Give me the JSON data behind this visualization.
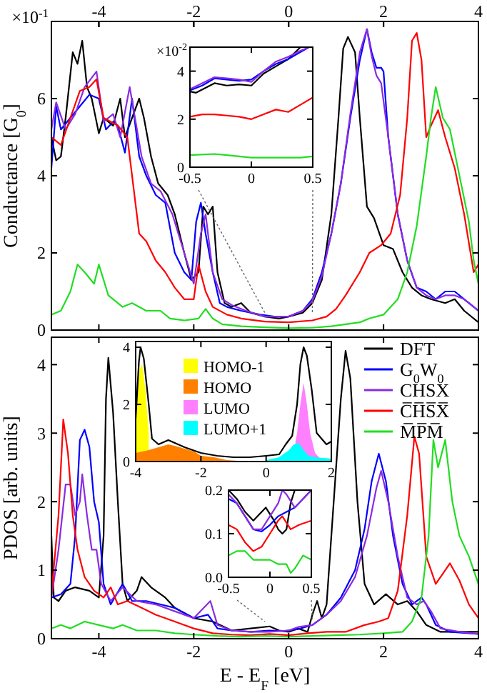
{
  "chart_data": [
    {
      "type": "line",
      "ylabel": "Conductance [G$_{0}$]",
      "annotations": [
        "×10$^{-1}$"
      ],
      "xlim": [
        -5,
        4
      ],
      "ylim": [
        0,
        8
      ],
      "xticks": [
        -4,
        -2,
        0,
        2,
        4
      ],
      "x2lim": [
        -5,
        4
      ],
      "x2ticks": [
        -4,
        -2,
        0,
        2,
        4
      ],
      "yticks": [
        0,
        2,
        4,
        6
      ],
      "tick_labels": "y",
      "series": [
        {
          "color": "#000000",
          "x": [
            -5,
            -4.9,
            -4.8,
            -4.7,
            -4.55,
            -4.45,
            -4.35,
            -4.25,
            -4.15,
            -4,
            -3.9,
            -3.7,
            -3.55,
            -3.45,
            -3.15,
            -3.05,
            -2.9,
            -2.75,
            -2.55,
            -2.4,
            -2.2,
            -2.05,
            -1.9,
            -1.8,
            -1.7,
            -1.6,
            -1.5,
            -1.35,
            -1.2,
            -1,
            -0.8,
            -0.5,
            -0.2,
            0,
            0.3,
            0.5,
            0.7,
            0.9,
            1.05,
            1.15,
            1.25,
            1.4,
            1.5,
            1.65,
            1.8,
            2,
            2.2,
            2.4,
            2.6,
            2.8,
            3,
            3.3,
            3.5,
            3.7,
            4
          ],
          "values": [
            5,
            4.4,
            4.5,
            5.5,
            7.2,
            6.9,
            7.5,
            6.3,
            6,
            5.1,
            5.5,
            5.3,
            6,
            5,
            6,
            5.5,
            4.5,
            3.8,
            3.5,
            3,
            2,
            1.3,
            1.5,
            3.2,
            3,
            3.2,
            1.5,
            0.7,
            0.6,
            0.7,
            0.45,
            0.35,
            0.3,
            0.35,
            0.45,
            0.7,
            1.3,
            3,
            5.5,
            7.3,
            7.6,
            7.2,
            5.5,
            3.2,
            2.9,
            2.2,
            2.1,
            1.5,
            1.1,
            0.9,
            0.8,
            0.7,
            0.8,
            0.5,
            0.2
          ]
        },
        {
          "color": "#0000ff",
          "x": [
            -5,
            -4.9,
            -4.8,
            -4.6,
            -4.4,
            -4.2,
            -4,
            -3.85,
            -3.7,
            -3.6,
            -3.45,
            -3.3,
            -3.15,
            -3,
            -2.8,
            -2.6,
            -2.4,
            -2.2,
            -2.05,
            -1.95,
            -1.85,
            -1.75,
            -1.6,
            -1.45,
            -1.3,
            -1,
            -0.6,
            -0.3,
            0,
            0.3,
            0.5,
            0.7,
            0.9,
            1.1,
            1.3,
            1.5,
            1.65,
            1.75,
            1.85,
            1.95,
            2,
            2.1,
            2.3,
            2.5,
            2.7,
            2.9,
            3.1,
            3.3,
            3.5,
            3.7,
            4
          ],
          "values": [
            4.2,
            5.8,
            5.2,
            5.5,
            5.8,
            6.1,
            6,
            5.2,
            5.4,
            5.3,
            4.6,
            6,
            4.5,
            4,
            3.5,
            3.3,
            2,
            1.5,
            1.3,
            2.8,
            3.3,
            2.5,
            1.5,
            0.7,
            0.6,
            0.5,
            0.4,
            0.35,
            0.35,
            0.5,
            0.8,
            1.5,
            2.5,
            3.8,
            5.5,
            7,
            7.8,
            7.2,
            6.8,
            6.8,
            6.7,
            5,
            3,
            1.8,
            1.1,
            1,
            0.8,
            1,
            1,
            0.8,
            0.5
          ]
        },
        {
          "color": "#8a2be2",
          "x": [
            -5,
            -4.9,
            -4.7,
            -4.5,
            -4.3,
            -4.05,
            -3.9,
            -3.7,
            -3.55,
            -3.35,
            -3.1,
            -2.9,
            -2.7,
            -2.45,
            -2.2,
            -2,
            -1.85,
            -1.75,
            -1.6,
            -1.4,
            -1.2,
            -0.9,
            -0.5,
            0,
            0.3,
            0.5,
            0.7,
            0.9,
            1.1,
            1.3,
            1.5,
            1.65,
            1.75,
            1.85,
            1.95,
            2.1,
            2.3,
            2.5,
            2.7,
            2.9,
            3.1,
            3.3,
            3.5,
            3.7,
            4
          ],
          "values": [
            5.2,
            5.9,
            5.2,
            5.6,
            6.3,
            6.7,
            5.4,
            5.6,
            5,
            6.3,
            4.5,
            3.8,
            3.6,
            3,
            2,
            1.2,
            2.5,
            3,
            1.5,
            0.8,
            0.65,
            0.5,
            0.35,
            0.35,
            0.5,
            0.75,
            1.4,
            2.5,
            3.8,
            5.6,
            7.2,
            7.8,
            7.1,
            6.6,
            6.4,
            5,
            3,
            1.8,
            1.1,
            0.9,
            0.8,
            0.9,
            0.9,
            0.8,
            0.5
          ]
        },
        {
          "color": "#ff0000",
          "x": [
            -5,
            -4.8,
            -4.6,
            -4.4,
            -4.2,
            -4.05,
            -3.9,
            -3.6,
            -3.4,
            -3.3,
            -3.15,
            -3,
            -2.8,
            -2.6,
            -2.4,
            -2.2,
            -2,
            -1.9,
            -1.75,
            -1.6,
            -1.3,
            -1,
            -0.5,
            0,
            0.5,
            0.8,
            1,
            1.2,
            1.5,
            1.7,
            1.95,
            2.15,
            2.35,
            2.5,
            2.6,
            2.7,
            2.8,
            2.9,
            3,
            3.15,
            3.3,
            3.5,
            3.7,
            3.9,
            4
          ],
          "values": [
            5,
            4.8,
            5.5,
            6.2,
            6.3,
            6.5,
            5.5,
            5.3,
            5,
            4,
            2.5,
            2.3,
            1.8,
            1.5,
            1.1,
            0.8,
            0.8,
            1.7,
            1,
            0.6,
            0.4,
            0.3,
            0.22,
            0.2,
            0.25,
            0.35,
            0.55,
            0.9,
            1.5,
            2,
            2.2,
            2.5,
            3.5,
            5.5,
            7.5,
            7.7,
            7,
            5,
            5.3,
            5.7,
            5,
            4.2,
            3,
            1.5,
            1.7
          ]
        },
        {
          "color": "#22dd22",
          "x": [
            -5,
            -4.8,
            -4.6,
            -4.45,
            -4.3,
            -4.1,
            -4,
            -3.8,
            -3.5,
            -3.3,
            -3,
            -2.7,
            -2.5,
            -2.2,
            -1.9,
            -1.75,
            -1.6,
            -1.4,
            -1,
            -0.5,
            0,
            0.5,
            0.9,
            1.2,
            1.5,
            1.7,
            2,
            2.3,
            2.5,
            2.7,
            2.9,
            3,
            3.1,
            3.25,
            3.4,
            3.6,
            3.8,
            3.9,
            4
          ],
          "values": [
            0.4,
            0.5,
            1,
            1.7,
            1.5,
            1.2,
            1.7,
            0.9,
            0.6,
            0.7,
            0.5,
            0.5,
            0.3,
            0.25,
            0.3,
            0.55,
            0.3,
            0.15,
            0.1,
            0.07,
            0.05,
            0.06,
            0.1,
            0.15,
            0.2,
            0.3,
            0.4,
            0.8,
            1.5,
            2.7,
            4.5,
            5.5,
            6.3,
            5.5,
            5.2,
            4,
            2.8,
            1.8,
            1.2
          ]
        }
      ]
    },
    {
      "type": "line",
      "annotations": [
        "×10$^{-2}$"
      ],
      "xlim": [
        -0.5,
        0.5
      ],
      "ylim": [
        0,
        5
      ],
      "xticks": [
        -0.5,
        0,
        0.5
      ],
      "yticks": [
        0,
        2,
        4
      ],
      "series": [
        {
          "color": "#000000",
          "x": [
            -0.5,
            -0.45,
            -0.3,
            -0.2,
            -0.1,
            0,
            0.1,
            0.2,
            0.3,
            0.4
          ],
          "values": [
            3.15,
            3.1,
            3.5,
            3.4,
            3.45,
            3.4,
            3.9,
            4.2,
            4.5,
            5
          ]
        },
        {
          "color": "#0000ff",
          "x": [
            -0.5,
            -0.4,
            -0.3,
            -0.2,
            -0.1,
            0,
            0.1,
            0.2,
            0.3,
            0.4,
            0.47
          ],
          "values": [
            3.2,
            3.4,
            3.7,
            3.65,
            3.6,
            3.65,
            4,
            4.3,
            4.5,
            4.8,
            5
          ]
        },
        {
          "color": "#8a2be2",
          "x": [
            -0.5,
            -0.4,
            -0.3,
            -0.2,
            -0.1,
            0,
            0.1,
            0.2,
            0.3,
            0.4,
            0.47
          ],
          "values": [
            3.25,
            3.5,
            3.75,
            3.7,
            3.65,
            3.55,
            4,
            4.4,
            4.6,
            4.85,
            5
          ]
        },
        {
          "color": "#ff0000",
          "x": [
            -0.5,
            -0.4,
            -0.3,
            -0.2,
            -0.1,
            0,
            0.1,
            0.2,
            0.3,
            0.4,
            0.5
          ],
          "values": [
            2.1,
            2.2,
            2.2,
            2.15,
            2.1,
            2,
            2.2,
            2.4,
            2.3,
            2.6,
            2.9
          ]
        },
        {
          "color": "#22dd22",
          "x": [
            -0.5,
            -0.3,
            -0.2,
            0,
            0.2,
            0.4,
            0.5
          ],
          "values": [
            0.5,
            0.55,
            0.5,
            0.4,
            0.4,
            0.4,
            0.45
          ]
        }
      ]
    },
    {
      "type": "line",
      "xlabel": "E - E$_{F}$ [eV]",
      "ylabel": "PDOS [arb. units]",
      "xlim": [
        -5,
        4
      ],
      "ylim": [
        0,
        4.4
      ],
      "xticks": [
        -4,
        -2,
        0,
        2,
        4
      ],
      "yticks": [
        0,
        1,
        2,
        3,
        4
      ],
      "legend": "top right",
      "series": [
        {
          "name": "DFT",
          "color": "#000000",
          "x": [
            -5,
            -4.95,
            -4.85,
            -4.7,
            -4.5,
            -4.2,
            -4,
            -3.9,
            -3.85,
            -3.8,
            -3.7,
            -3.6,
            -3.5,
            -3.4,
            -3.2,
            -3.1,
            -2.9,
            -2.6,
            -2.4,
            -2,
            -1.6,
            -1.2,
            -0.8,
            -0.4,
            -0.2,
            0,
            0.2,
            0.4,
            0.5,
            0.6,
            0.7,
            0.8,
            0.95,
            1.1,
            1.2,
            1.3,
            1.45,
            1.6,
            1.8,
            2.05,
            2.3,
            2.5,
            2.7,
            2.9,
            3.2,
            3.6,
            4
          ],
          "values": [
            1.5,
            0.6,
            0.55,
            0.7,
            0.75,
            0.7,
            0.6,
            1.5,
            3.5,
            4.1,
            3.3,
            2,
            0.8,
            0.55,
            0.7,
            0.9,
            0.75,
            0.6,
            0.45,
            0.3,
            0.25,
            0.12,
            0.15,
            0.18,
            0.12,
            0.1,
            0.15,
            0.1,
            0.35,
            0.55,
            0.3,
            0.5,
            2,
            3.5,
            4.2,
            3.8,
            2,
            0.8,
            0.5,
            0.65,
            0.5,
            0.55,
            0.4,
            0.2,
            0.1,
            0.1,
            0.1
          ]
        },
        {
          "name": "G$_{0}$W$_{0}$",
          "color": "#0000ff",
          "x": [
            -5,
            -4.8,
            -4.6,
            -4.5,
            -4.4,
            -4.3,
            -4.2,
            -4.1,
            -4,
            -3.9,
            -3.75,
            -3.5,
            -3.3,
            -3,
            -2.7,
            -2.4,
            -2,
            -1.7,
            -1.5,
            -1.2,
            -0.8,
            -0.4,
            -0.1,
            0.2,
            0.5,
            0.8,
            1.1,
            1.4,
            1.6,
            1.75,
            1.9,
            2.05,
            2.2,
            2.4,
            2.6,
            2.8,
            2.9,
            3.1,
            3.4,
            4
          ],
          "values": [
            0.6,
            0.65,
            0.8,
            1.5,
            2.9,
            3.05,
            2.8,
            2,
            1.7,
            0.8,
            0.5,
            0.8,
            0.55,
            0.55,
            0.5,
            0.45,
            0.3,
            0.35,
            0.15,
            0.12,
            0.1,
            0.12,
            0.11,
            0.14,
            0.2,
            0.35,
            0.6,
            1,
            1.6,
            2.3,
            2.7,
            2.3,
            1.5,
            0.8,
            0.5,
            0.6,
            0.5,
            0.2,
            0.1,
            0.07
          ]
        },
        {
          "name": "CHSX",
          "color": "#8a2be2",
          "x": [
            -5,
            -4.85,
            -4.7,
            -4.6,
            -4.5,
            -4.4,
            -4.35,
            -4.25,
            -4.15,
            -4.05,
            -3.95,
            -3.75,
            -3.5,
            -3.2,
            -2.8,
            -2.4,
            -2,
            -1.65,
            -1.5,
            -1.2,
            -0.8,
            -0.4,
            0,
            0.2,
            0.5,
            0.8,
            1.1,
            1.4,
            1.65,
            1.85,
            1.95,
            2.1,
            2.3,
            2.5,
            2.7,
            2.85,
            3,
            3.2,
            3.6,
            4
          ],
          "values": [
            0.6,
            1.3,
            2.25,
            2.25,
            1.8,
            2,
            2.4,
            1.8,
            1.3,
            1.3,
            0.8,
            0.55,
            0.75,
            0.55,
            0.5,
            0.4,
            0.3,
            0.55,
            0.2,
            0.12,
            0.1,
            0.1,
            0.12,
            0.17,
            0.2,
            0.35,
            0.55,
            0.9,
            1.5,
            2.2,
            2.45,
            2,
            1.2,
            0.6,
            0.5,
            0.55,
            0.4,
            0.15,
            0.1,
            0.07
          ]
        },
        {
          "name": "C̅H̅S̅X̅",
          "color": "#ff0000",
          "x": [
            -5,
            -4.85,
            -4.75,
            -4.65,
            -4.55,
            -4.45,
            -4.3,
            -4.1,
            -3.9,
            -3.75,
            -3.6,
            -3.4,
            -3.1,
            -2.8,
            -2.4,
            -2,
            -1.6,
            -1.2,
            -0.8,
            -0.4,
            0,
            0.4,
            0.8,
            1.2,
            1.6,
            1.9,
            2.1,
            2.3,
            2.5,
            2.65,
            2.75,
            2.9,
            3.1,
            3.3,
            3.4,
            3.6,
            3.8,
            4
          ],
          "values": [
            0.65,
            1.8,
            3.2,
            2.7,
            1.8,
            1.3,
            0.9,
            0.7,
            0.6,
            0.75,
            0.5,
            0.55,
            0.45,
            0.35,
            0.25,
            0.15,
            0.08,
            0.06,
            0.05,
            0.07,
            0.05,
            0.08,
            0.1,
            0.1,
            0.2,
            0.25,
            0.3,
            0.7,
            1.8,
            2.95,
            2.7,
            1.2,
            0.8,
            1,
            1.1,
            0.85,
            0.5,
            0.3
          ]
        },
        {
          "name": "M̅P̅M̅",
          "color": "#22dd22",
          "x": [
            -5,
            -4.8,
            -4.6,
            -4.3,
            -4,
            -3.7,
            -3.5,
            -3.2,
            -2.8,
            -2.4,
            -2,
            -1.5,
            -1,
            -0.5,
            0,
            0.5,
            1,
            1.5,
            2,
            2.4,
            2.6,
            2.8,
            2.95,
            3.05,
            3.15,
            3.3,
            3.45,
            3.6,
            3.8,
            4
          ],
          "values": [
            0.15,
            0.2,
            0.15,
            0.25,
            0.2,
            0.15,
            0.2,
            0.12,
            0.12,
            0.08,
            0.06,
            0.04,
            0.03,
            0.04,
            0.03,
            0.04,
            0.05,
            0.06,
            0.08,
            0.1,
            0.25,
            0.6,
            1.5,
            2.9,
            2.5,
            2.9,
            2,
            1.5,
            1.2,
            0.8
          ]
        }
      ]
    },
    {
      "type": "area",
      "xlim": [
        -4,
        2
      ],
      "ylim": [
        0,
        4.2
      ],
      "xticks": [
        -4,
        -2,
        0,
        2
      ],
      "yticks": [
        0,
        2,
        4
      ],
      "legend": "top",
      "series": [
        {
          "name": "HOMO-1",
          "color": "#ffff00",
          "x": [
            -4,
            -3.9,
            -3.8,
            -3.7,
            -3.6
          ],
          "values": [
            1.5,
            3.2,
            3.4,
            2.5,
            1
          ]
        },
        {
          "name": "HOMO",
          "color": "#ff8000",
          "x": [
            -4,
            -3.6,
            -3.3,
            -3,
            -2.8,
            -2.5,
            -2.2,
            -2,
            -1.6,
            -1.2,
            -0.8,
            -0.4
          ],
          "values": [
            0.3,
            0.4,
            0.5,
            0.6,
            0.55,
            0.45,
            0.35,
            0.2,
            0.15,
            0.05,
            0.02,
            0
          ]
        },
        {
          "name": "LUMO",
          "color": "#ff80ff",
          "x": [
            0.9,
            0.95,
            1.05,
            1.15,
            1.25,
            1.35,
            1.5,
            1.7,
            2
          ],
          "values": [
            0.7,
            1,
            2,
            2.75,
            2,
            1,
            0.3,
            0.05,
            0
          ]
        },
        {
          "name": "LUMO+1",
          "color": "#00ffff",
          "x": [
            0,
            0.4,
            0.7,
            0.85,
            1,
            1.15,
            1.3,
            1.5,
            2
          ],
          "values": [
            0.05,
            0.15,
            0.4,
            0.6,
            0.65,
            0.4,
            0.2,
            0.15,
            0.1
          ]
        },
        {
          "type": "line",
          "color": "#000000",
          "x": [
            -4,
            -3.9,
            -3.85,
            -3.75,
            -3.6,
            -3.5,
            -3.3,
            -3,
            -2.8,
            -2.5,
            -2,
            -1.5,
            -1,
            -0.5,
            0,
            0.4,
            0.6,
            0.8,
            0.95,
            1.05,
            1.15,
            1.25,
            1.4,
            1.55,
            1.7,
            1.85,
            2
          ],
          "values": [
            1.5,
            3.5,
            4,
            3.6,
            2,
            0.8,
            0.6,
            0.75,
            0.65,
            0.5,
            0.3,
            0.2,
            0.15,
            0.15,
            0.2,
            0.25,
            0.6,
            0.9,
            2,
            3.4,
            4,
            3.7,
            2.5,
            1,
            0.8,
            0.6,
            0.7
          ]
        }
      ]
    },
    {
      "type": "line",
      "xlim": [
        -0.5,
        0.5
      ],
      "ylim": [
        0,
        0.2
      ],
      "xticks": [
        -0.5,
        0,
        0.5
      ],
      "yticks": [
        {
          "value": 0,
          "label": "0.0"
        },
        0.1,
        0.2
      ],
      "series": [
        {
          "color": "#000000",
          "x": [
            -0.5,
            -0.4,
            -0.3,
            -0.2,
            -0.1,
            -0.05,
            0.05,
            0.1,
            0.15,
            0.2,
            0.25,
            0.3
          ],
          "values": [
            0.2,
            0.18,
            0.15,
            0.13,
            0.15,
            0.16,
            0.13,
            0.11,
            0.1,
            0.11,
            0.17,
            0.2
          ]
        },
        {
          "color": "#0000ff",
          "x": [
            -0.5,
            -0.4,
            -0.3,
            -0.2,
            -0.1,
            0,
            0.1,
            0.2,
            0.3,
            0.4,
            0.5
          ],
          "values": [
            0.18,
            0.17,
            0.14,
            0.11,
            0.105,
            0.12,
            0.14,
            0.15,
            0.16,
            0.18,
            0.2
          ]
        },
        {
          "color": "#8a2be2",
          "x": [
            -0.5,
            -0.4,
            -0.3,
            -0.2,
            -0.1,
            0,
            0.1,
            0.15,
            0.2,
            0.3,
            0.4,
            0.5
          ],
          "values": [
            0.19,
            0.17,
            0.14,
            0.11,
            0.11,
            0.14,
            0.17,
            0.2,
            0.19,
            0.16,
            0.18,
            0.2
          ]
        },
        {
          "color": "#ff0000",
          "x": [
            -0.5,
            -0.4,
            -0.3,
            -0.2,
            -0.1,
            0,
            0.1,
            0.15,
            0.25,
            0.35,
            0.5
          ],
          "values": [
            0.12,
            0.11,
            0.08,
            0.06,
            0.07,
            0.1,
            0.13,
            0.14,
            0.11,
            0.12,
            0.13
          ]
        },
        {
          "color": "#22dd22",
          "x": [
            -0.5,
            -0.4,
            -0.3,
            -0.2,
            -0.1,
            0,
            0.1,
            0.2,
            0.25,
            0.3,
            0.4,
            0.5
          ],
          "values": [
            0.05,
            0.06,
            0.06,
            0.04,
            0.04,
            0.04,
            0.03,
            0.03,
            0.01,
            0.02,
            0.05,
            0.04
          ]
        }
      ]
    }
  ]
}
